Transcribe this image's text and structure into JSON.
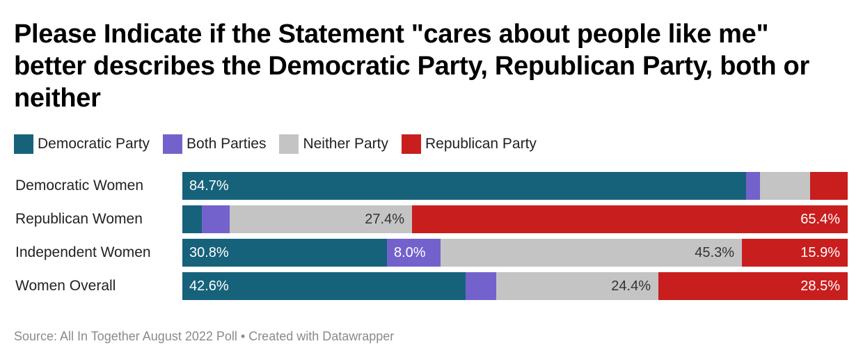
{
  "header": {
    "title": "Please Indicate if the Statement \"cares about people like me\" better describes the Democratic Party, Republican Party, both or neither"
  },
  "legend": [
    {
      "label": "Democratic Party",
      "color": "#17627b"
    },
    {
      "label": "Both Parties",
      "color": "#7362cc"
    },
    {
      "label": "Neither Party",
      "color": "#c4c4c4"
    },
    {
      "label": "Republican Party",
      "color": "#c91e1e"
    }
  ],
  "footer": {
    "source": "Source: All In Together August 2022 Poll • Created with Datawrapper"
  },
  "chart_data": {
    "type": "bar",
    "orientation": "horizontal",
    "stacked": true,
    "title": "Please Indicate if the Statement \"cares about people like me\" better describes the Democratic Party, Republican Party, both or neither",
    "xlabel": "",
    "ylabel": "",
    "xlim": [
      0,
      100
    ],
    "unit": "%",
    "legend_position": "top-left",
    "categories": [
      "Democratic Women",
      "Republican Women",
      "Independent Women",
      "Women Overall"
    ],
    "series": [
      {
        "name": "Democratic Party",
        "color": "#17627b",
        "label_color": "#ffffff",
        "values": [
          84.7,
          2.9,
          30.8,
          42.6
        ],
        "labels": [
          "84.7%",
          "",
          "30.8%",
          "42.6%"
        ],
        "label_align": "left"
      },
      {
        "name": "Both Parties",
        "color": "#7362cc",
        "label_color": "#ffffff",
        "values": [
          2.1,
          4.2,
          8.0,
          4.6
        ],
        "labels": [
          "",
          "",
          "8.0%",
          ""
        ],
        "label_align": "left"
      },
      {
        "name": "Neither Party",
        "color": "#c4c4c4",
        "label_color": "#333333",
        "values": [
          7.5,
          27.4,
          45.3,
          24.4
        ],
        "labels": [
          "",
          "27.4%",
          "45.3%",
          "24.4%"
        ],
        "label_align": "right"
      },
      {
        "name": "Republican Party",
        "color": "#c91e1e",
        "label_color": "#ffffff",
        "values": [
          5.6,
          65.4,
          15.9,
          28.5
        ],
        "labels": [
          "",
          "65.4%",
          "15.9%",
          "28.5%"
        ],
        "label_align": "right"
      }
    ],
    "source": "Source: All In Together August 2022 Poll • Created with Datawrapper"
  }
}
